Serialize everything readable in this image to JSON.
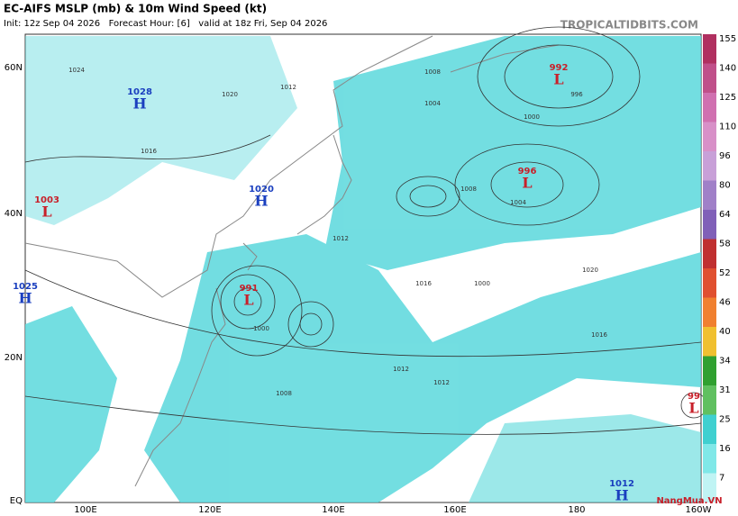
{
  "header": {
    "title": "EC-AIFS MSLP (mb) & 10m Wind Speed (kt)",
    "subtitle": "Init: 12z Sep 04 2026   Forecast Hour: [6]   valid at 18z Fri, Sep 04 2026",
    "site": "TROPICALTIDBITS.COM"
  },
  "latitudes": [
    "60N",
    "40N",
    "20N",
    "EQ"
  ],
  "longitudes": [
    "100E",
    "120E",
    "140E",
    "160E",
    "180",
    "160W"
  ],
  "centers": [
    {
      "letter": "H",
      "pressure": "1028"
    },
    {
      "letter": "H",
      "pressure": "1020"
    },
    {
      "letter": "L",
      "pressure": "1003"
    },
    {
      "letter": "H",
      "pressure": "1025"
    },
    {
      "letter": "L",
      "pressure": "991"
    },
    {
      "letter": "L",
      "pressure": "992"
    },
    {
      "letter": "L",
      "pressure": "996"
    },
    {
      "letter": "L",
      "pressure": "99"
    },
    {
      "letter": "H",
      "pressure": "1012"
    }
  ],
  "isobar_labels": [
    "1024",
    "1020",
    "1016",
    "1012",
    "1008",
    "1004",
    "1000",
    "996",
    "1008",
    "1004",
    "1000",
    "1016",
    "1020",
    "1012",
    "1016",
    "1012",
    "1008",
    "1012",
    "1000"
  ],
  "colorbar": {
    "labels": [
      "155",
      "140",
      "125",
      "110",
      "96",
      "80",
      "64",
      "58",
      "52",
      "46",
      "40",
      "34",
      "31",
      "25",
      "16",
      "7"
    ],
    "colors": [
      "#b03060",
      "#c0508a",
      "#d070b0",
      "#d890c8",
      "#c8a0d8",
      "#a080c8",
      "#8060b8",
      "#c03030",
      "#e05030",
      "#f08030",
      "#f0c030",
      "#30a030",
      "#60c060",
      "#40d0d0",
      "#80e8e8",
      "#c0f4f4"
    ]
  },
  "watermark": "NangMua.VN"
}
